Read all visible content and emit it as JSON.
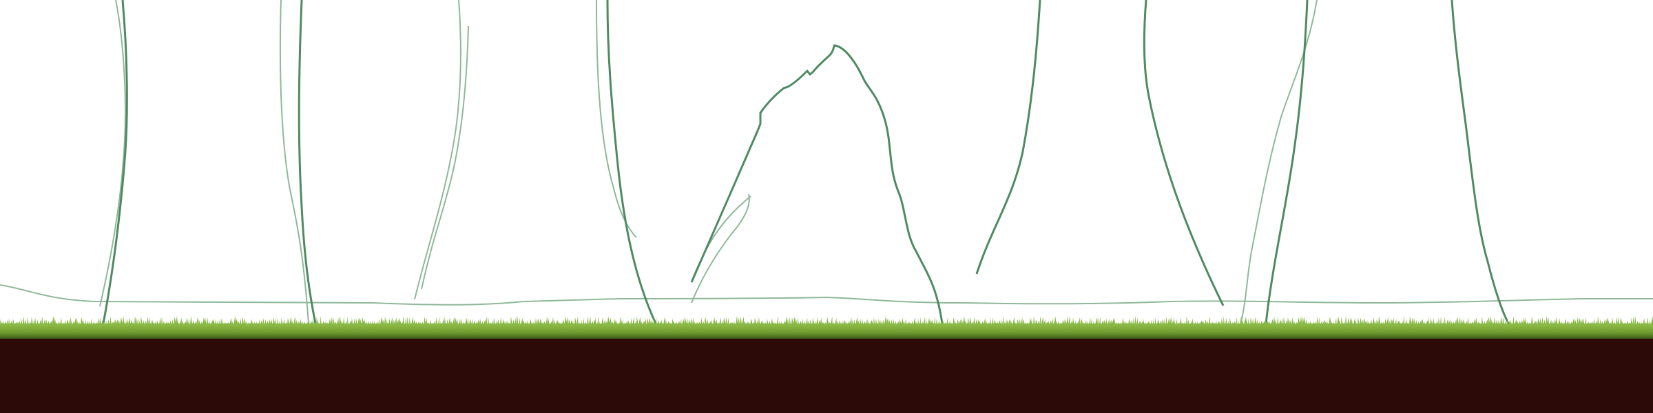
{
  "scene": {
    "description_free": true,
    "colors": {
      "sky": "#ffffff",
      "vine_dark": "#4f8a62",
      "vine_light": "#8fb89a",
      "grass_top": "#7ea83a",
      "grass_dark": "#4f7a1c",
      "soil": "#2c0a07"
    },
    "elements": {
      "terrain_outline": "terrain-outline",
      "vines": "hanging-vine",
      "mountain": "mountain-outline",
      "grass": "grass-strip",
      "soil": "soil-ground"
    }
  }
}
